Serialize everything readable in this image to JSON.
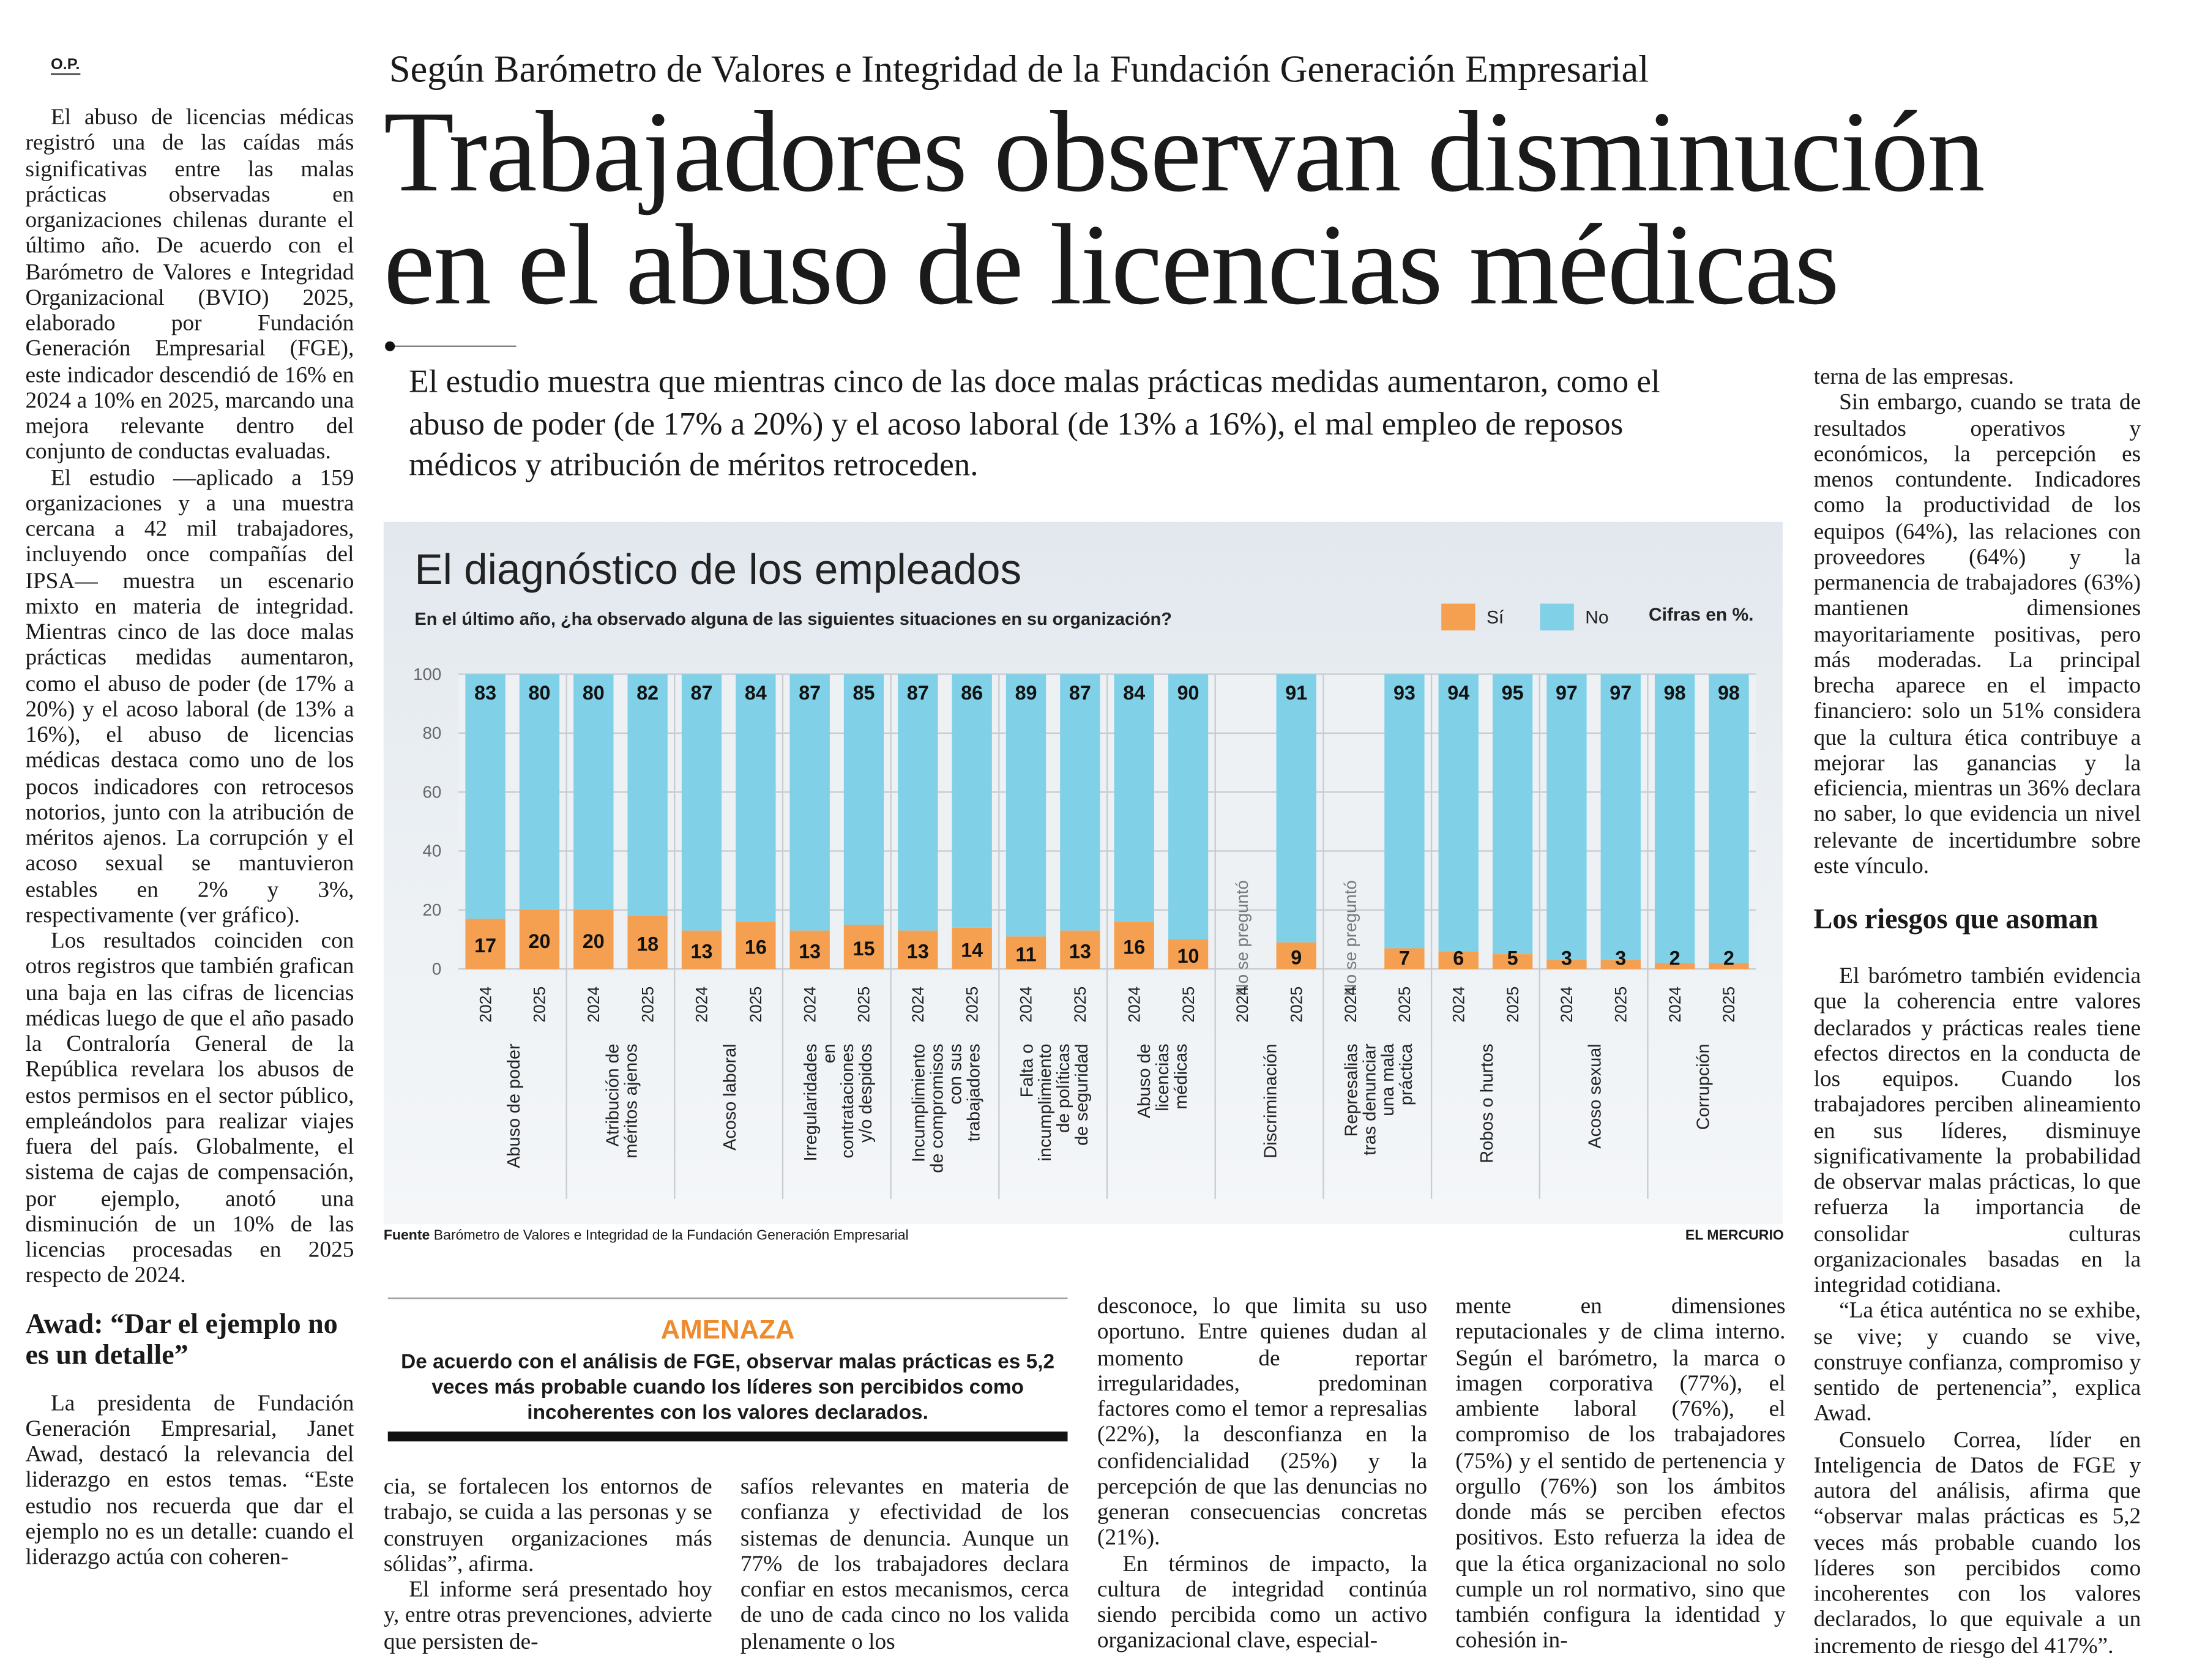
{
  "byline": "O.P.",
  "kicker": "Según Barómetro de Valores e Integridad de la Fundación Generación Empresarial",
  "headline": [
    "Trabajadores observan disminución",
    "en el abuso de licencias médicas"
  ],
  "deck": "El estudio muestra que mientras cinco de las doce malas prácticas medidas aumentaron, como el abuso de poder (de 17% a 20%) y el acoso laboral (de 13% a 16%), el mal empleo de reposos médicos y atribución de méritos retroceden.",
  "col1": {
    "paragraphs": [
      "El abuso de licencias médicas registró una de las caídas más significativas entre las malas prácticas observadas en organizaciones chilenas durante el último año. De acuerdo con el Barómetro de Valores e Integridad Organizacional (BVIO) 2025, elaborado por Fundación Generación Empresarial (FGE), este indicador descendió de 16% en 2024 a 10% en 2025, marcando una mejora relevante dentro del conjunto de conductas evaluadas.",
      "El estudio —aplicado a 159 organizaciones y a una muestra cercana a 42 mil trabajadores, incluyendo once compañías del IPSA— muestra un escenario mixto en materia de integridad. Mientras cinco de las doce malas prácticas medidas aumentaron, como el abuso de poder (de 17% a 20%) y el acoso laboral (de 13% a 16%), el abuso de licencias médicas destaca como uno de los pocos indicadores con retrocesos notorios, junto con la atribución de méritos ajenos. La corrupción y el acoso sexual se mantuvieron estables en 2% y 3%, respectivamente (ver gráfico).",
      "Los resultados coinciden con otros registros que también grafican una baja en las cifras de licencias médicas luego de que el año pasado la Contraloría General de la República revelara los abusos de estos permisos en el sector público, empleándolos para realizar viajes fuera del país. Globalmente, el sistema de cajas de compensación, por ejemplo, anotó una disminución de un 10% de las licencias procesadas en 2025 respecto de 2024."
    ],
    "subheading": "Awad: “Dar el ejemplo no es un detalle”",
    "after": "La presidenta de Fundación Generación Empresarial, Janet Awad, destacó la relevancia del liderazgo en estos temas. “Este estudio nos recuerda que dar el ejemplo no es un detalle: cuando el liderazgo actúa con coheren-"
  },
  "col2": [
    "cia, se fortalecen los entornos de trabajo, se cuida a las personas y se construyen organizaciones más sólidas”, afirma.",
    "El informe será presentado hoy y, entre otras prevenciones, advierte que persisten de-"
  ],
  "col3": [
    "safíos relevantes en materia de confianza y efectividad de los sistemas de denuncia. Aunque un 77% de los trabajadores declara confiar en estos mecanismos, cerca de uno de cada cinco no los valida plenamente o los"
  ],
  "col4": [
    "desconoce, lo que limita su uso oportuno. Entre quienes dudan al momento de reportar irregularidades, predominan factores como el temor a represalias (22%), la desconfianza en la confidencialidad (25%) y la percepción de que las denuncias no generan consecuencias concretas (21%).",
    "En términos de impacto, la cultura de integridad continúa siendo percibida como un activo organizacional clave, especial-"
  ],
  "col5": [
    "mente en dimensiones reputacionales y de clima interno. Según el barómetro, la marca o imagen corporativa (77%), el ambiente laboral (76%), el compromiso de los trabajadores (75%) y el sentido de pertenencia y orgullo (76%) son los ámbitos donde más se perciben efectos positivos. Esto refuerza la idea de que la ética organizacional no solo cumple un rol normativo, sino que también configura la identidad y cohesión in-"
  ],
  "col6": {
    "paragraphs": [
      "terna de las empresas.",
      "Sin embargo, cuando se trata de resultados operativos y económicos, la percepción es menos contundente. Indicadores como la productividad de los equipos (64%), las relaciones con proveedores (64%) y la permanencia de trabajadores (63%) mantienen dimensiones mayoritariamente positivas, pero más moderadas. La principal brecha aparece en el impacto financiero: solo un 51% considera que la cultura ética contribuye a mejorar las ganancias y la eficiencia, mientras un 36% declara no saber, lo que evidencia un nivel relevante de incertidumbre sobre este vínculo."
    ],
    "subheading": "Los riesgos que asoman",
    "after": [
      "El barómetro también evidencia que la coherencia entre valores declarados y prácticas reales tiene efectos directos en la conducta de los equipos. Cuando los trabajadores perciben alineamiento en sus líderes, disminuye significativamente la probabilidad de observar malas prácticas, lo que refuerza la importancia de consolidar culturas organizacionales basadas en la integridad cotidiana.",
      "“La ética auténtica no se exhibe, se vive; y cuando se vive, construye confianza, compromiso y sentido de pertenencia”, explica Awad.",
      "Consuelo Correa, líder en Inteligencia de Datos de FGE y autora del análisis, afirma que “observar malas prácticas es 5,2 veces más probable cuando los líderes son percibidos como incoherentes con los valores declarados, lo que equivale a un incremento de riesgo del 417%”."
    ]
  },
  "amenaza": {
    "title": "AMENAZA",
    "body": "De acuerdo con el análisis de FGE, observar malas prácticas es 5,2 veces más probable cuando los líderes son percibidos como incoherentes con los valores declarados."
  },
  "source": {
    "label": "Fuente",
    "text": "Barómetro de Valores e Integridad de la Fundación Generación Empresarial"
  },
  "credit": "EL MERCURIO",
  "chart_data": {
    "type": "bar",
    "stacked": true,
    "title": "El diagnóstico de los empleados",
    "subtitle": "En el último año, ¿ha observado alguna de las siguientes situaciones en su organización?",
    "units_note": "Cifras en %.",
    "ylim": [
      0,
      100
    ],
    "yticks": [
      0,
      20,
      40,
      60,
      80,
      100
    ],
    "years": [
      "2024",
      "2025"
    ],
    "not_asked_label": "No se preguntó",
    "categories": [
      "Abuso de poder",
      "Atribución de méritos ajenos",
      "Acoso laboral",
      "Irregularidades en contrataciones y/o despidos",
      "Incumplimiento de compromisos con sus trabajadores",
      "Falta o incumplimiento de políticas de seguridad",
      "Abuso de licencias médicas",
      "Discriminación",
      "Represalias tras denunciar una mala práctica",
      "Robos o hurtos",
      "Acoso sexual",
      "Corrupción"
    ],
    "series": [
      {
        "name": "Sí",
        "color": "#f5a050",
        "values": [
          [
            17,
            20
          ],
          [
            20,
            18
          ],
          [
            13,
            16
          ],
          [
            13,
            15
          ],
          [
            13,
            14
          ],
          [
            11,
            13
          ],
          [
            16,
            10
          ],
          [
            null,
            9
          ],
          [
            null,
            7
          ],
          [
            6,
            5
          ],
          [
            3,
            3
          ],
          [
            2,
            2
          ]
        ]
      },
      {
        "name": "No",
        "color": "#80d0e8",
        "values": [
          [
            83,
            80
          ],
          [
            80,
            82
          ],
          [
            87,
            84
          ],
          [
            87,
            85
          ],
          [
            87,
            86
          ],
          [
            89,
            87
          ],
          [
            84,
            90
          ],
          [
            null,
            91
          ],
          [
            null,
            93
          ],
          [
            94,
            95
          ],
          [
            97,
            97
          ],
          [
            98,
            98
          ]
        ]
      }
    ]
  }
}
